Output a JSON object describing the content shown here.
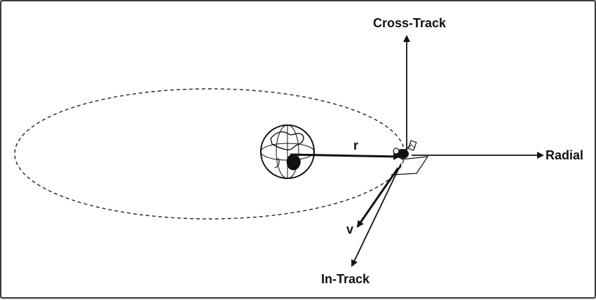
{
  "diagram": {
    "labels": {
      "cross_track": "Cross-Track",
      "radial": "Radial",
      "in_track": "In-Track",
      "r": "r",
      "v": "v"
    },
    "icons": {
      "earth": "earth-globe-icon",
      "satellite": "satellite-icon"
    }
  }
}
